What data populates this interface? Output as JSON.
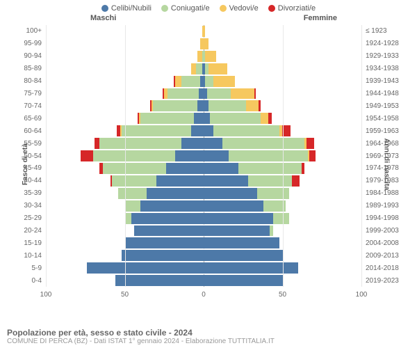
{
  "legend": [
    {
      "label": "Celibi/Nubili",
      "color": "#4d79a8"
    },
    {
      "label": "Coniugati/e",
      "color": "#b6d7a0"
    },
    {
      "label": "Vedovi/e",
      "color": "#f6c85f"
    },
    {
      "label": "Divorziati/e",
      "color": "#d62728"
    }
  ],
  "headers": {
    "male": "Maschi",
    "female": "Femmine"
  },
  "axis_labels": {
    "left": "Fasce di età",
    "right": "Anni di nascita"
  },
  "xmax": 100,
  "xticks": [
    100,
    50,
    0,
    50,
    100
  ],
  "age_groups": [
    "100+",
    "95-99",
    "90-94",
    "85-89",
    "80-84",
    "75-79",
    "70-74",
    "65-69",
    "60-64",
    "55-59",
    "50-54",
    "45-49",
    "40-44",
    "35-39",
    "30-34",
    "25-29",
    "20-24",
    "15-19",
    "10-14",
    "5-9",
    "0-4"
  ],
  "birth_years": [
    "≤ 1923",
    "1924-1928",
    "1929-1933",
    "1934-1938",
    "1939-1943",
    "1944-1948",
    "1949-1953",
    "1954-1958",
    "1959-1963",
    "1964-1968",
    "1969-1973",
    "1974-1978",
    "1979-1983",
    "1984-1988",
    "1989-1993",
    "1994-1998",
    "1999-2003",
    "2004-2008",
    "2009-2013",
    "2014-2018",
    "2019-2023"
  ],
  "rows": [
    {
      "m": [
        0,
        0,
        1,
        0
      ],
      "f": [
        0,
        0,
        1,
        0
      ]
    },
    {
      "m": [
        0,
        0,
        2,
        0
      ],
      "f": [
        0,
        0,
        3,
        0
      ]
    },
    {
      "m": [
        0,
        1,
        3,
        0
      ],
      "f": [
        0,
        1,
        7,
        0
      ]
    },
    {
      "m": [
        1,
        4,
        3,
        0
      ],
      "f": [
        1,
        2,
        12,
        0
      ]
    },
    {
      "m": [
        2,
        12,
        4,
        1
      ],
      "f": [
        1,
        5,
        14,
        0
      ]
    },
    {
      "m": [
        3,
        20,
        2,
        1
      ],
      "f": [
        2,
        15,
        15,
        1
      ]
    },
    {
      "m": [
        4,
        28,
        1,
        1
      ],
      "f": [
        3,
        24,
        8,
        1
      ]
    },
    {
      "m": [
        6,
        34,
        1,
        1
      ],
      "f": [
        4,
        32,
        5,
        2
      ]
    },
    {
      "m": [
        8,
        44,
        1,
        2
      ],
      "f": [
        6,
        42,
        2,
        5
      ]
    },
    {
      "m": [
        14,
        52,
        0,
        3
      ],
      "f": [
        12,
        52,
        1,
        5
      ]
    },
    {
      "m": [
        18,
        52,
        0,
        8
      ],
      "f": [
        16,
        50,
        1,
        4
      ]
    },
    {
      "m": [
        24,
        40,
        0,
        2
      ],
      "f": [
        22,
        40,
        0,
        2
      ]
    },
    {
      "m": [
        30,
        28,
        0,
        1
      ],
      "f": [
        28,
        28,
        0,
        5
      ]
    },
    {
      "m": [
        36,
        18,
        0,
        0
      ],
      "f": [
        34,
        20,
        0,
        0
      ]
    },
    {
      "m": [
        40,
        10,
        0,
        0
      ],
      "f": [
        38,
        14,
        0,
        0
      ]
    },
    {
      "m": [
        46,
        4,
        0,
        0
      ],
      "f": [
        44,
        10,
        0,
        0
      ]
    },
    {
      "m": [
        44,
        0,
        0,
        0
      ],
      "f": [
        42,
        2,
        0,
        0
      ]
    },
    {
      "m": [
        50,
        0,
        0,
        0
      ],
      "f": [
        48,
        0,
        0,
        0
      ]
    },
    {
      "m": [
        52,
        0,
        0,
        0
      ],
      "f": [
        50,
        0,
        0,
        0
      ]
    },
    {
      "m": [
        74,
        0,
        0,
        0
      ],
      "f": [
        60,
        0,
        0,
        0
      ]
    },
    {
      "m": [
        56,
        0,
        0,
        0
      ],
      "f": [
        50,
        0,
        0,
        0
      ]
    }
  ],
  "footer_title": "Popolazione per età, sesso e stato civile - 2024",
  "footer_sub": "COMUNE DI PERCA (BZ) - Dati ISTAT 1° gennaio 2024 - Elaborazione TUTTITALIA.IT",
  "style": {
    "grid_color": "#e8e8e8",
    "axis_font_size": 10,
    "header_font_size": 11,
    "background": "#ffffff"
  }
}
